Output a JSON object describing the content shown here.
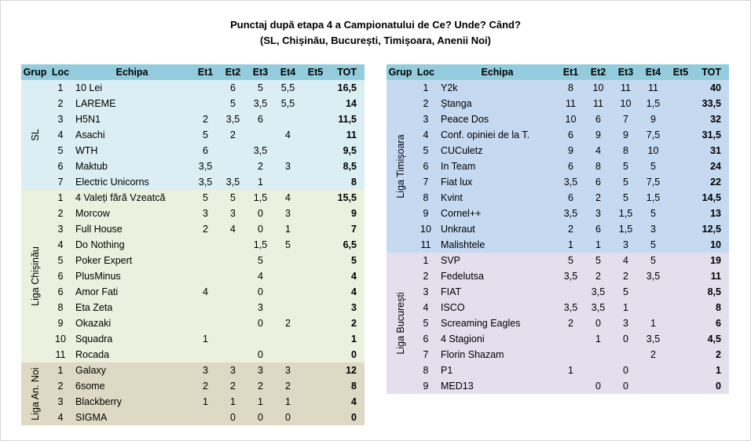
{
  "title": {
    "line1": "Punctaj după etapa 4 a Campionatului de Ce? Unde? Când?",
    "line2": "(SL, Chișinău, București, Timișoara, Anenii Noi)"
  },
  "headers": [
    "Grup",
    "Loc",
    "Echipa",
    "Et1",
    "Et2",
    "Et3",
    "Et4",
    "Et5",
    "TOT"
  ],
  "colors": {
    "header": "#93cddd",
    "sl": "#daeef3",
    "chisinau": "#ebf1de",
    "anenii_noi": "#ddd9c4",
    "timisoara": "#c5d9f1",
    "bucuresti": "#e4dfec"
  },
  "left_groups": [
    {
      "name": "SL",
      "cls": "sl",
      "rows": [
        [
          "1",
          "10 Lei",
          "",
          "6",
          "5",
          "5,5",
          "",
          "16,5"
        ],
        [
          "2",
          "LAREME",
          "",
          "5",
          "3,5",
          "5,5",
          "",
          "14"
        ],
        [
          "3",
          "H5N1",
          "2",
          "3,5",
          "6",
          "",
          "",
          "11,5"
        ],
        [
          "4",
          "Asachi",
          "5",
          "2",
          "",
          "4",
          "",
          "11"
        ],
        [
          "5",
          "WTH",
          "6",
          "",
          "3,5",
          "",
          "",
          "9,5"
        ],
        [
          "6",
          "Maktub",
          "3,5",
          "",
          "2",
          "3",
          "",
          "8,5"
        ],
        [
          "7",
          "Electric Unicorns",
          "3,5",
          "3,5",
          "1",
          "",
          "",
          "8"
        ]
      ]
    },
    {
      "name": "Liga Chișinău",
      "cls": "chis",
      "rows": [
        [
          "1",
          "4 Valeți fără Vzeatcă",
          "5",
          "5",
          "1,5",
          "4",
          "",
          "15,5"
        ],
        [
          "2",
          "Morcow",
          "3",
          "3",
          "0",
          "3",
          "",
          "9"
        ],
        [
          "3",
          "Full House",
          "2",
          "4",
          "0",
          "1",
          "",
          "7"
        ],
        [
          "4",
          "Do Nothing",
          "",
          "",
          "1,5",
          "5",
          "",
          "6,5"
        ],
        [
          "5",
          "Poker Expert",
          "",
          "",
          "5",
          "",
          "",
          "5"
        ],
        [
          "6",
          "PlusMinus",
          "",
          "",
          "4",
          "",
          "",
          "4"
        ],
        [
          "6",
          "Amor Fati",
          "4",
          "",
          "0",
          "",
          "",
          "4"
        ],
        [
          "8",
          "Eta Zeta",
          "",
          "",
          "3",
          "",
          "",
          "3"
        ],
        [
          "9",
          "Okazaki",
          "",
          "",
          "0",
          "2",
          "",
          "2"
        ],
        [
          "10",
          "Squadra",
          "1",
          "",
          "",
          "",
          "",
          "1"
        ],
        [
          "11",
          "Rocada",
          "",
          "",
          "0",
          "",
          "",
          "0"
        ]
      ]
    },
    {
      "name": "Liga An. Noi",
      "cls": "anoi",
      "rows": [
        [
          "1",
          "Galaxy",
          "3",
          "3",
          "3",
          "3",
          "",
          "12"
        ],
        [
          "2",
          "6some",
          "2",
          "2",
          "2",
          "2",
          "",
          "8"
        ],
        [
          "3",
          "Blackberry",
          "1",
          "1",
          "1",
          "1",
          "",
          "4"
        ],
        [
          "4",
          "SIGMA",
          "",
          "0",
          "0",
          "0",
          "",
          "0"
        ]
      ]
    }
  ],
  "right_groups": [
    {
      "name": "Liga Timișoara",
      "cls": "tim",
      "rows": [
        [
          "1",
          "Y2k",
          "8",
          "10",
          "11",
          "11",
          "",
          "40"
        ],
        [
          "2",
          "Ștanga",
          "11",
          "11",
          "10",
          "1,5",
          "",
          "33,5"
        ],
        [
          "3",
          "Peace Dos",
          "10",
          "6",
          "7",
          "9",
          "",
          "32"
        ],
        [
          "4",
          "Conf. opiniei de la T.",
          "6",
          "9",
          "9",
          "7,5",
          "",
          "31,5"
        ],
        [
          "5",
          "CUCuletz",
          "9",
          "4",
          "8",
          "10",
          "",
          "31"
        ],
        [
          "6",
          "In Team",
          "6",
          "8",
          "5",
          "5",
          "",
          "24"
        ],
        [
          "7",
          "Fiat lux",
          "3,5",
          "6",
          "5",
          "7,5",
          "",
          "22"
        ],
        [
          "8",
          "Kvint",
          "6",
          "2",
          "5",
          "1,5",
          "",
          "14,5"
        ],
        [
          "9",
          "Cornel++",
          "3,5",
          "3",
          "1,5",
          "5",
          "",
          "13"
        ],
        [
          "10",
          "Unkraut",
          "2",
          "6",
          "1,5",
          "3",
          "",
          "12,5"
        ],
        [
          "11",
          "Malishtele",
          "1",
          "1",
          "3",
          "5",
          "",
          "10"
        ]
      ]
    },
    {
      "name": "Liga București",
      "cls": "buc",
      "rows": [
        [
          "1",
          "SVP",
          "5",
          "5",
          "4",
          "5",
          "",
          "19"
        ],
        [
          "2",
          "Fedelutsa",
          "3,5",
          "2",
          "2",
          "3,5",
          "",
          "11"
        ],
        [
          "3",
          "FIAT",
          "",
          "3,5",
          "5",
          "",
          "",
          "8,5"
        ],
        [
          "4",
          "ISCO",
          "3,5",
          "3,5",
          "1",
          "",
          "",
          "8"
        ],
        [
          "5",
          "Screaming Eagles",
          "2",
          "0",
          "3",
          "1",
          "",
          "6"
        ],
        [
          "6",
          "4 Stagioni",
          "",
          "1",
          "0",
          "3,5",
          "",
          "4,5"
        ],
        [
          "7",
          "Florin Shazam",
          "",
          "",
          "",
          "2",
          "",
          "2"
        ],
        [
          "8",
          "P1",
          "1",
          "",
          "0",
          "",
          "",
          "1"
        ],
        [
          "9",
          "MED13",
          "",
          "0",
          "0",
          "",
          "",
          "0"
        ]
      ]
    }
  ]
}
